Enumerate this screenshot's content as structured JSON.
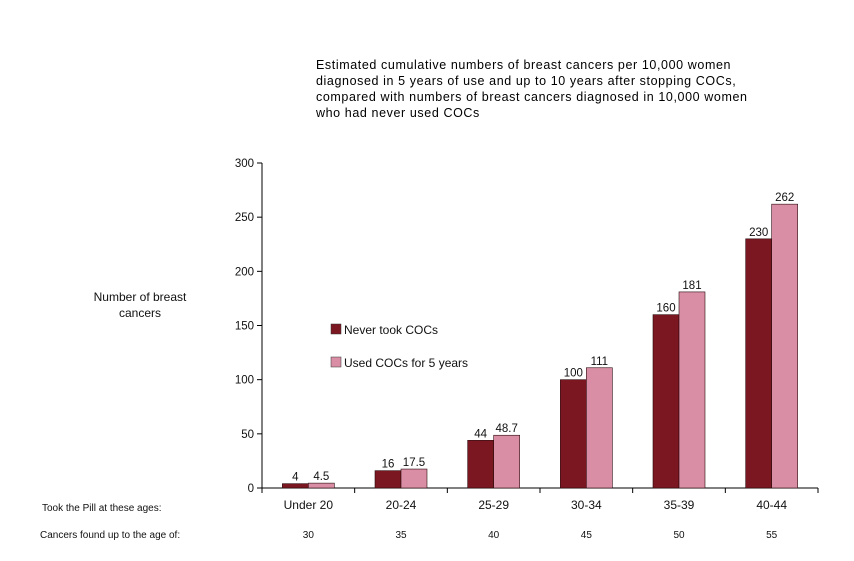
{
  "chart_data": {
    "type": "bar",
    "title_lines": [
      "Estimated cumulative numbers of breast cancers per 10,000 women",
      "diagnosed in 5 years of use and up to 10 years after stopping COCs,",
      "compared with numbers of breast cancers diagnosed in 10,000 women",
      "who had never used COCs"
    ],
    "ylabel_lines": [
      "Number of breast",
      "cancers"
    ],
    "xlabel": "",
    "ylim": [
      0,
      300
    ],
    "yticks": [
      0,
      50,
      100,
      150,
      200,
      250,
      300
    ],
    "categories": [
      "Under 20",
      "20-24",
      "25-29",
      "30-34",
      "35-39",
      "40-44"
    ],
    "series": [
      {
        "name": "Never took COCs",
        "color": "#7b1720",
        "values": [
          4,
          16,
          44,
          100,
          160,
          230
        ],
        "labels": [
          "4",
          "16",
          "44",
          "100",
          "160",
          "230"
        ]
      },
      {
        "name": "Used COCs for 5 years",
        "color": "#d98ea5",
        "values": [
          4.5,
          17.5,
          48.7,
          111,
          181,
          262
        ],
        "labels": [
          "4.5",
          "17.5",
          "48.7",
          "111",
          "181",
          "262"
        ]
      }
    ],
    "legend_position": "center-left",
    "grid": false,
    "row_labels": {
      "took_pill": "Took the Pill at these ages:",
      "cancers_found": "Cancers found up to the age of:"
    },
    "cancers_found_ages": [
      "30",
      "35",
      "40",
      "45",
      "50",
      "55"
    ]
  }
}
